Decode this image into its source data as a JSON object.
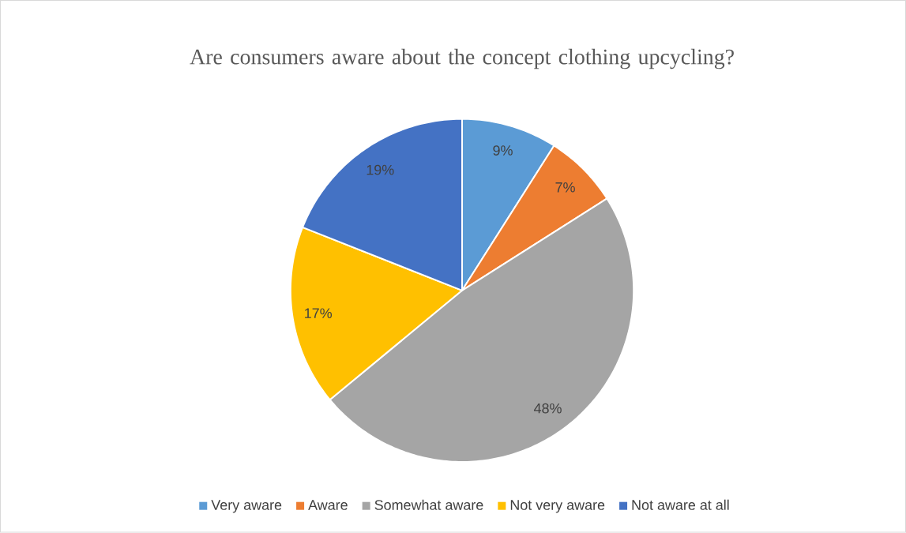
{
  "chart_data": {
    "type": "pie",
    "title": "Are consumers aware about the concept clothing upcycling?",
    "categories": [
      "Very aware",
      "Aware",
      "Somewhat aware",
      "Not very aware",
      "Not aware at all"
    ],
    "values": [
      9,
      7,
      48,
      17,
      19
    ],
    "colors": [
      "#5b9bd5",
      "#ed7d31",
      "#a5a5a5",
      "#ffc000",
      "#4472c4"
    ],
    "value_labels": [
      "9%",
      "7%",
      "48%",
      "17%",
      "19%"
    ],
    "legend": "bottom"
  }
}
